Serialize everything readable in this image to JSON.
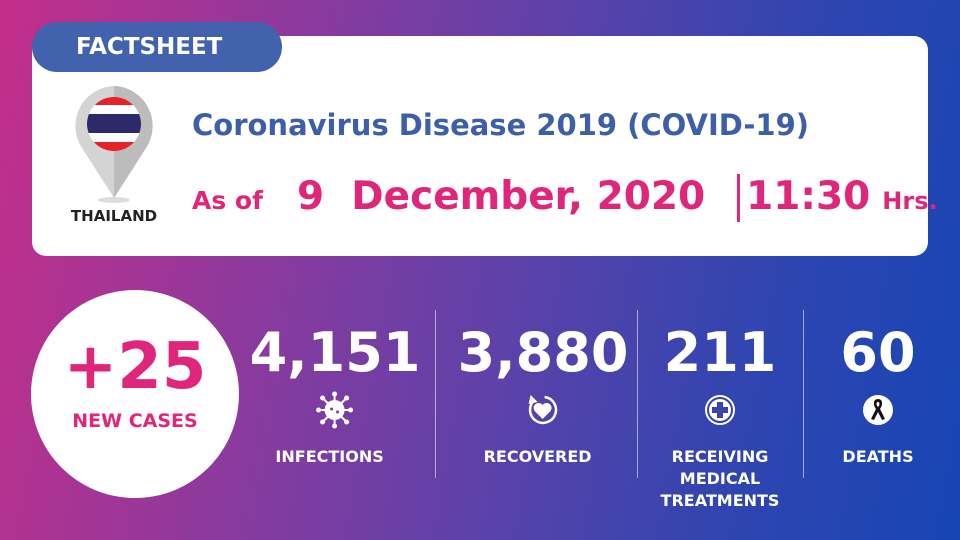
{
  "header": {
    "tab": "FACTSHEET",
    "country": "THAILAND",
    "title": "Coronavirus Disease 2019 (COVID-19)",
    "as_of": "As of",
    "date": "9  December, 2020",
    "time": "11:30",
    "time_unit": "Hrs."
  },
  "new_cases": {
    "value": "+25",
    "label": "NEW CASES"
  },
  "stats": [
    {
      "value": "4,151",
      "label": "INFECTIONS",
      "icon": "virus-icon"
    },
    {
      "value": "3,880",
      "label": "RECOVERED",
      "icon": "recovered-heart-icon"
    },
    {
      "value": "211",
      "label": "RECEIVING MEDICAL TREATMENTS",
      "icon": "medical-cross-icon"
    },
    {
      "value": "60",
      "label": "DEATHS",
      "icon": "black-ribbon-icon"
    }
  ],
  "colors": {
    "blue": "#3d5ea9",
    "pink": "#e0267a",
    "tab": "#4262ad"
  }
}
